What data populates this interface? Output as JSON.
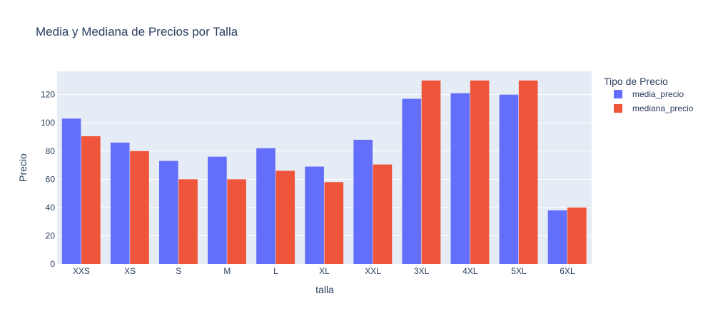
{
  "chart_data": {
    "type": "bar",
    "title": "Media y Mediana de Precios por Talla",
    "xlabel": "talla",
    "ylabel": "Precio",
    "categories": [
      "XXS",
      "XS",
      "S",
      "M",
      "L",
      "XL",
      "XXL",
      "3XL",
      "4XL",
      "5XL",
      "6XL"
    ],
    "series": [
      {
        "name": "media_precio",
        "color": "#636efa",
        "values": [
          103,
          86,
          73,
          76,
          82,
          69,
          88,
          117,
          121,
          120,
          38
        ]
      },
      {
        "name": "mediana_precio",
        "color": "#ef553b",
        "values": [
          90.5,
          80,
          60,
          60,
          66,
          58,
          70.5,
          130,
          130,
          130,
          40
        ]
      }
    ],
    "ylim": [
      0,
      136.5
    ],
    "yticks": [
      0,
      20,
      40,
      60,
      80,
      100,
      120
    ],
    "grid": true,
    "plot_bgcolor": "#e5ecf6",
    "legend": {
      "title": "Tipo de Precio",
      "placement": "right"
    }
  }
}
